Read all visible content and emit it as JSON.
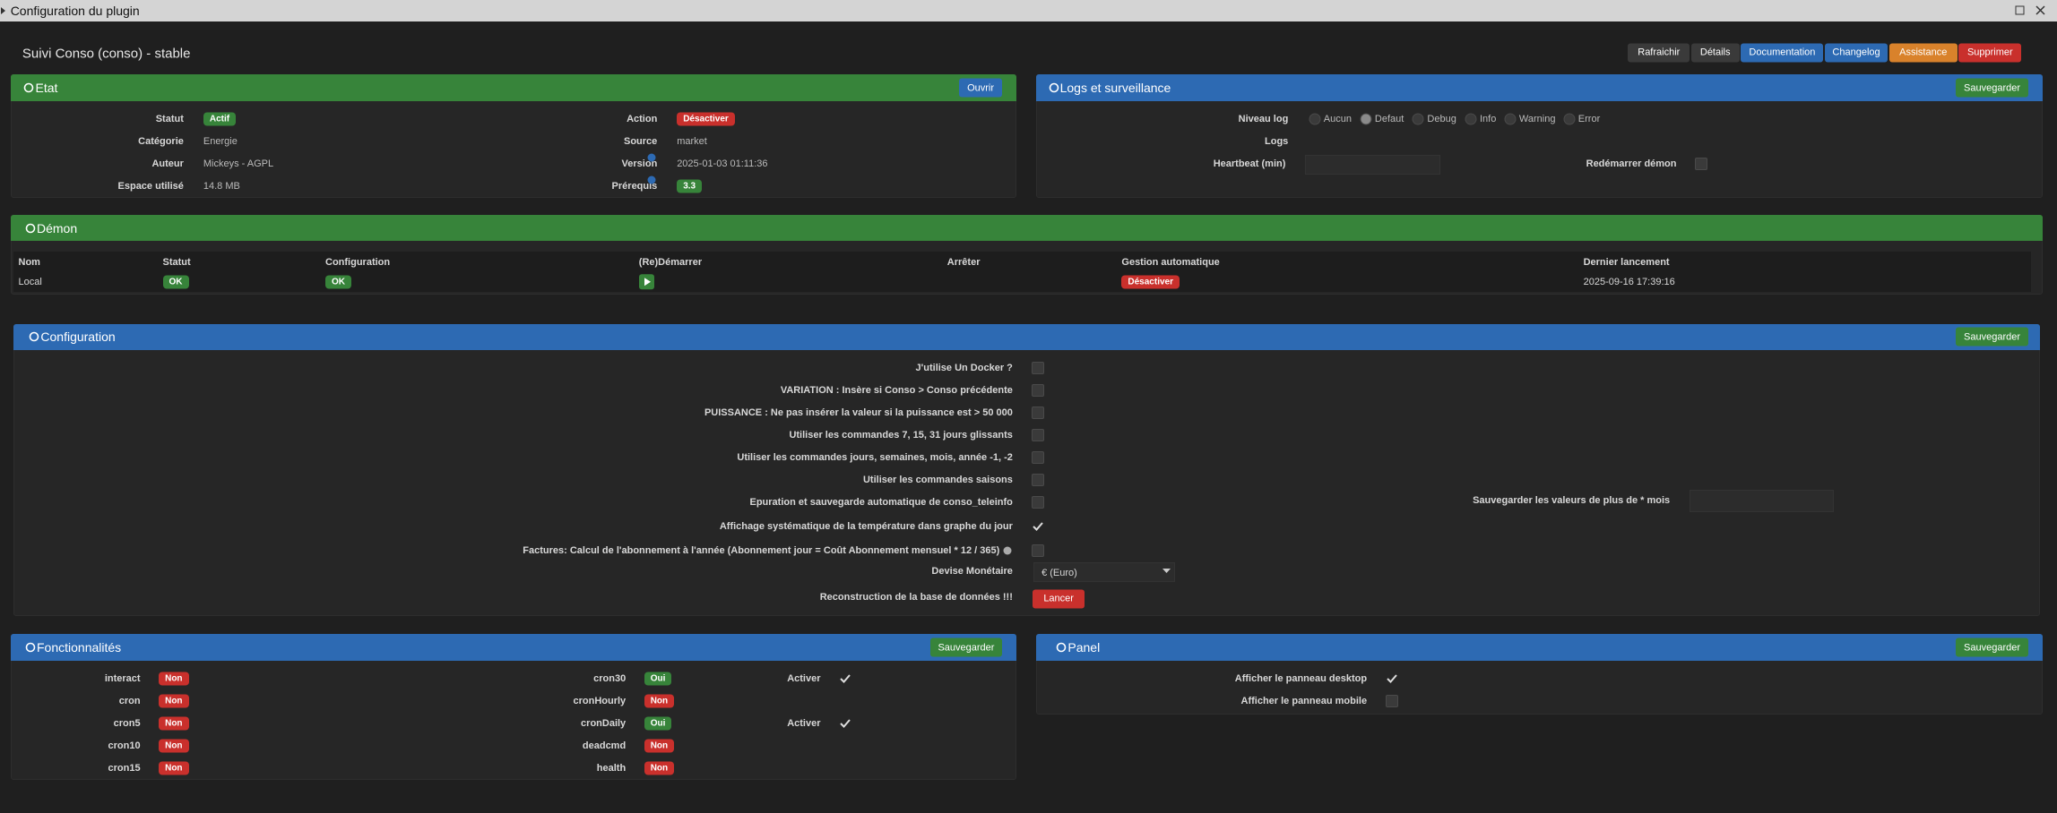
{
  "window": {
    "title": "Configuration du plugin"
  },
  "header": {
    "title": "Suivi Conso (conso) - stable",
    "buttons": [
      {
        "label": "Rafraichir",
        "color": "#3a3a3a"
      },
      {
        "label": "Détails",
        "color": "#3a3a3a"
      },
      {
        "label": "Documentation",
        "color": "#2d6ab3"
      },
      {
        "label": "Changelog",
        "color": "#2d6ab3"
      },
      {
        "label": "Assistance",
        "color": "#d9822b"
      },
      {
        "label": "Supprimer",
        "color": "#c9302c"
      }
    ]
  },
  "etat": {
    "title": "Etat",
    "button": "Ouvrir",
    "left": [
      {
        "label": "Statut",
        "value": "Actif",
        "badge": "#37843a"
      },
      {
        "label": "Catégorie",
        "value": "Energie"
      },
      {
        "label": "Auteur",
        "value": "Mickeys - AGPL"
      },
      {
        "label": "Espace utilisé",
        "value": "14.8 MB"
      }
    ],
    "right": [
      {
        "label": "Action",
        "value": "Désactiver",
        "badge": "#c9302c"
      },
      {
        "label": "Source",
        "value": "market"
      },
      {
        "label": "Version",
        "value": "2025-01-03 01:11:36",
        "help": true
      },
      {
        "label": "Prérequis",
        "value": "3.3",
        "badge": "#37843a",
        "help": true
      }
    ]
  },
  "logs": {
    "title": "Logs et surveillance",
    "button": "Sauvegarder",
    "level_label": "Niveau log",
    "levels": [
      "Aucun",
      "Defaut",
      "Debug",
      "Info",
      "Warning",
      "Error"
    ],
    "selected": 1,
    "logs_label": "Logs",
    "heartbeat_label": "Heartbeat (min)",
    "restart_label": "Redémarrer démon"
  },
  "demon": {
    "title": "Démon",
    "columns": [
      "Nom",
      "Statut",
      "Configuration",
      "(Re)Démarrer",
      "Arrêter",
      "Gestion automatique",
      "Dernier lancement"
    ],
    "row": {
      "nom": "Local",
      "statut": "OK",
      "configuration": "OK",
      "gestion": "Désactiver",
      "dernier": "2025-09-16 17:39:16"
    }
  },
  "configuration": {
    "title": "Configuration",
    "button": "Sauvegarder",
    "options": [
      {
        "label": "J'utilise Un Docker ?",
        "checked": false
      },
      {
        "label": "VARIATION : Insère si Conso > Conso précédente",
        "checked": false
      },
      {
        "label": "PUISSANCE : Ne pas insérer la valeur si la puissance est > 50 000",
        "checked": false
      },
      {
        "label": "Utiliser les commandes 7, 15, 31 jours glissants",
        "checked": false
      },
      {
        "label": "Utiliser les commandes jours, semaines, mois, année -1, -2",
        "checked": false
      },
      {
        "label": "Utiliser les commandes saisons",
        "checked": false
      },
      {
        "label": "Epuration et sauvegarde automatique de conso_teleinfo",
        "checked": false
      },
      {
        "label": "Affichage systématique de la température dans graphe du jour",
        "checked": true
      },
      {
        "label": "Factures: Calcul de l'abonnement à l'année (Abonnement jour = Coût Abonnement mensuel * 12 / 365)",
        "checked": false,
        "info": true
      }
    ],
    "devise": {
      "label": "Devise Monétaire",
      "value": "€ (Euro)"
    },
    "reconstruction": {
      "label": "Reconstruction de la base de données !!!",
      "button": "Lancer"
    },
    "retention": {
      "label": "Sauvegarder les valeurs de plus de * mois"
    }
  },
  "fonctionnalites": {
    "title": "Fonctionnalités",
    "button": "Sauvegarder",
    "items": [
      {
        "name": "interact",
        "status": "Non",
        "color": "#c9302c"
      },
      {
        "name": "cron",
        "status": "Non",
        "color": "#c9302c"
      },
      {
        "name": "cron5",
        "status": "Non",
        "color": "#c9302c"
      },
      {
        "name": "cron10",
        "status": "Non",
        "color": "#c9302c"
      },
      {
        "name": "cron15",
        "status": "Non",
        "color": "#c9302c"
      },
      {
        "name": "cron30",
        "status": "Oui",
        "color": "#37843a",
        "action": "Activer",
        "enabled": true
      },
      {
        "name": "cronHourly",
        "status": "Non",
        "color": "#c9302c"
      },
      {
        "name": "cronDaily",
        "status": "Oui",
        "color": "#37843a",
        "action": "Activer",
        "enabled": true
      },
      {
        "name": "deadcmd",
        "status": "Non",
        "color": "#c9302c"
      },
      {
        "name": "health",
        "status": "Non",
        "color": "#c9302c"
      }
    ]
  },
  "panel": {
    "title": "Panel",
    "button": "Sauvegarder",
    "options": [
      {
        "label": "Afficher le panneau desktop",
        "checked": true
      },
      {
        "label": "Afficher le panneau mobile",
        "checked": false
      }
    ]
  }
}
